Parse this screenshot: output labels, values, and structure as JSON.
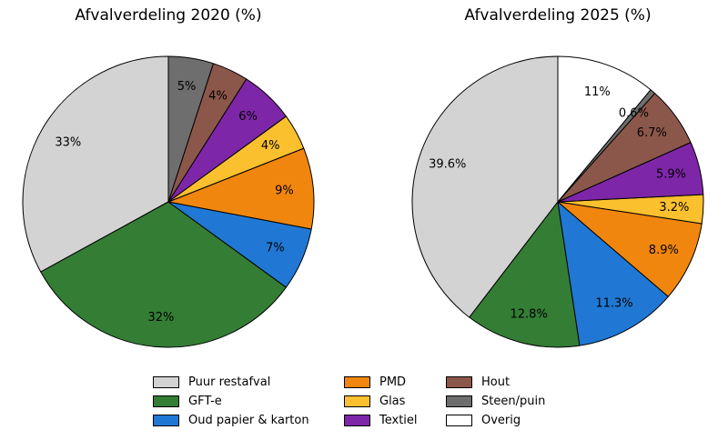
{
  "figure": {
    "background": "#ffffff",
    "edge_color": "#000000"
  },
  "chart_data": [
    {
      "type": "pie",
      "title": "Afvalverdeling 2020 (%)",
      "start_angle": 90,
      "direction": "counterclockwise",
      "pct_distance": 0.8,
      "slices": [
        {
          "label": "Puur restafval",
          "value": 33,
          "pct_label": "33%",
          "color": "#d3d3d3"
        },
        {
          "label": "GFT-e",
          "value": 32,
          "pct_label": "32%",
          "color": "#347d35"
        },
        {
          "label": "Oud papier & karton",
          "value": 7,
          "pct_label": "7%",
          "color": "#2078d4"
        },
        {
          "label": "PMD",
          "value": 9,
          "pct_label": "9%",
          "color": "#f0860d"
        },
        {
          "label": "Glas",
          "value": 4,
          "pct_label": "4%",
          "color": "#fbc02d"
        },
        {
          "label": "Textiel",
          "value": 6,
          "pct_label": "6%",
          "color": "#7e26a8"
        },
        {
          "label": "Hout",
          "value": 4,
          "pct_label": "4%",
          "color": "#8c574b"
        },
        {
          "label": "Steen/puin",
          "value": 5,
          "pct_label": "5%",
          "color": "#6e6e6e"
        },
        {
          "label": "Overig",
          "value": 0,
          "pct_label": "",
          "color": "#ffffff"
        }
      ]
    },
    {
      "type": "pie",
      "title": "Afvalverdeling 2025 (%)",
      "start_angle": 90,
      "direction": "counterclockwise",
      "pct_distance": 0.8,
      "slices": [
        {
          "label": "Puur restafval",
          "value": 39.6,
          "pct_label": "39.6%",
          "color": "#d3d3d3"
        },
        {
          "label": "GFT-e",
          "value": 12.8,
          "pct_label": "12.8%",
          "color": "#347d35"
        },
        {
          "label": "Oud papier & karton",
          "value": 11.3,
          "pct_label": "11.3%",
          "color": "#2078d4"
        },
        {
          "label": "PMD",
          "value": 8.9,
          "pct_label": "8.9%",
          "color": "#f0860d"
        },
        {
          "label": "Glas",
          "value": 3.2,
          "pct_label": "3.2%",
          "color": "#fbc02d"
        },
        {
          "label": "Textiel",
          "value": 5.9,
          "pct_label": "5.9%",
          "color": "#7e26a8"
        },
        {
          "label": "Hout",
          "value": 6.7,
          "pct_label": "6.7%",
          "color": "#8c574b"
        },
        {
          "label": "Steen/puin",
          "value": 0.6,
          "pct_label": "0.6%",
          "color": "#6e6e6e"
        },
        {
          "label": "Overig",
          "value": 11,
          "pct_label": "11%",
          "color": "#ffffff"
        }
      ]
    }
  ],
  "legend": {
    "position": "lower center",
    "columns": 3,
    "items": [
      {
        "label": "Puur restafval",
        "color": "#d3d3d3"
      },
      {
        "label": "GFT-e",
        "color": "#347d35"
      },
      {
        "label": "Oud papier & karton",
        "color": "#2078d4"
      },
      {
        "label": "PMD",
        "color": "#f0860d"
      },
      {
        "label": "Glas",
        "color": "#fbc02d"
      },
      {
        "label": "Textiel",
        "color": "#7e26a8"
      },
      {
        "label": "Hout",
        "color": "#8c574b"
      },
      {
        "label": "Steen/puin",
        "color": "#6e6e6e"
      },
      {
        "label": "Overig",
        "color": "#ffffff"
      }
    ]
  }
}
